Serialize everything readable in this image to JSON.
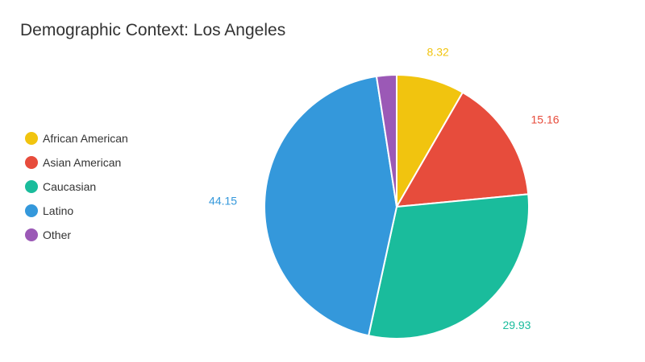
{
  "title": "Demographic Context: Los Angeles",
  "chart_data": {
    "type": "pie",
    "title": "Demographic Context: Los Angeles",
    "legend_position": "left",
    "slices": [
      {
        "label": "African American",
        "value": 8.32,
        "value_label": "8.32",
        "color": "#f1c40f"
      },
      {
        "label": "Asian American",
        "value": 15.16,
        "value_label": "15.16",
        "color": "#e74c3c"
      },
      {
        "label": "Caucasian",
        "value": 29.93,
        "value_label": "29.93",
        "color": "#1abc9c"
      },
      {
        "label": "Latino",
        "value": 44.15,
        "value_label": "44.15",
        "color": "#3498db"
      },
      {
        "label": "Other",
        "value": 2.44,
        "value_label": "",
        "color": "#9b59b6"
      }
    ]
  }
}
